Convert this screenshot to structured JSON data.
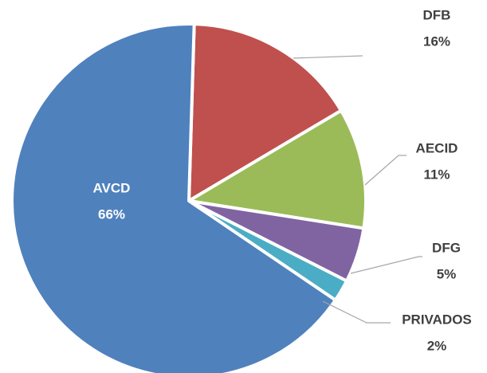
{
  "chart_data": {
    "type": "pie",
    "categories": [
      "DFB",
      "AECID",
      "DFG",
      "PRIVADOS",
      "AVCD"
    ],
    "values": [
      16,
      11,
      5,
      2,
      66
    ],
    "value_labels": [
      "16%",
      "11%",
      "5%",
      "2%",
      "66%"
    ],
    "colors": [
      "#c0504d",
      "#9bbb59",
      "#8064a2",
      "#4bacc6",
      "#4f81bd"
    ]
  }
}
